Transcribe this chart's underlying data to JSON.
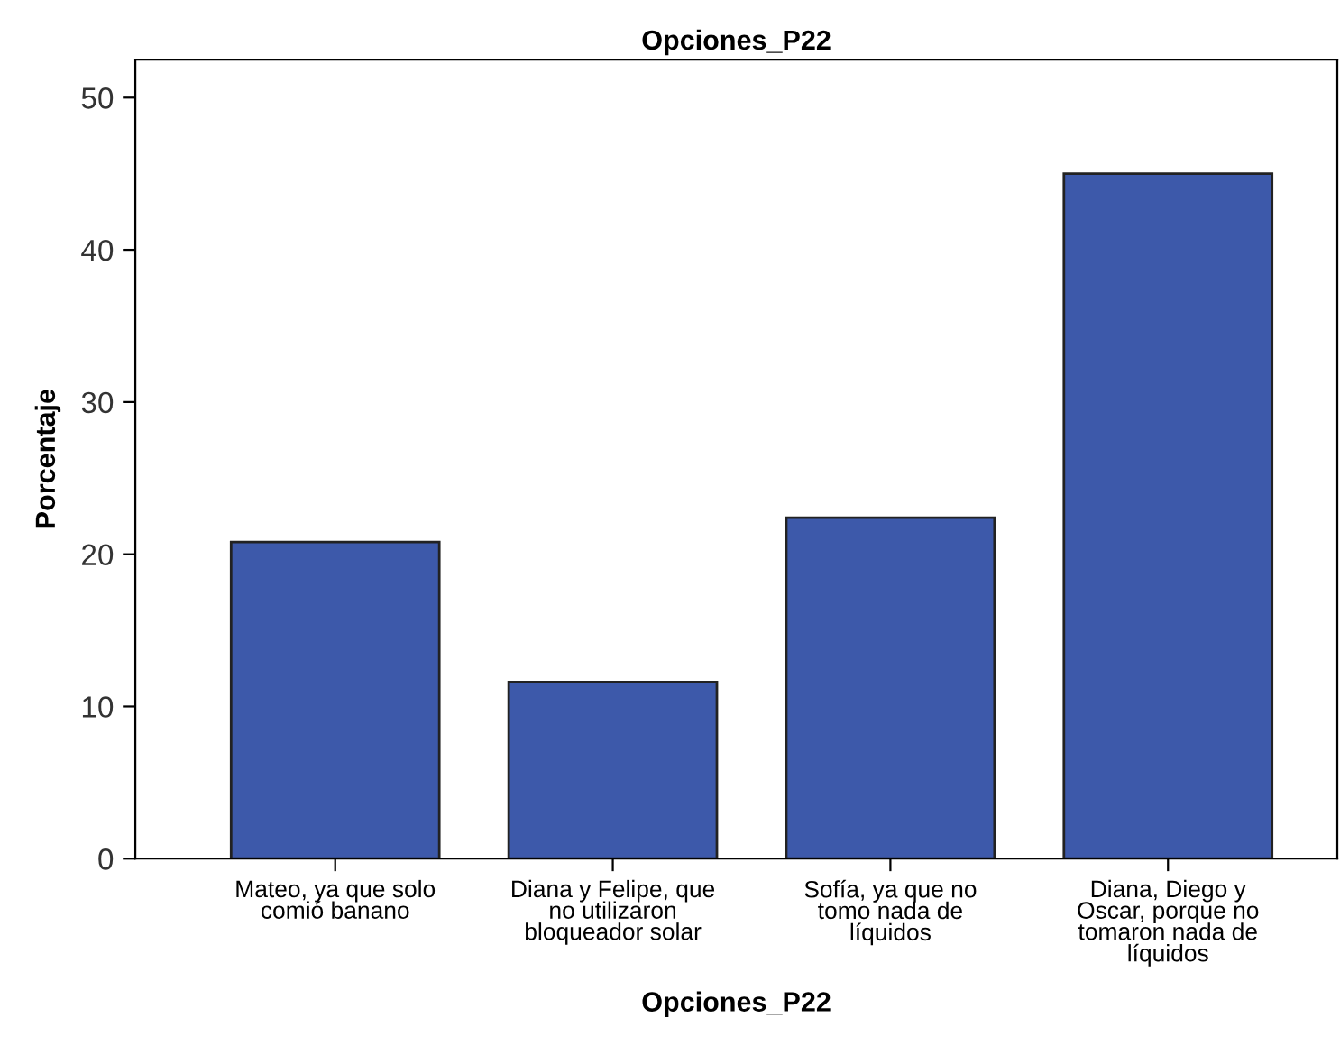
{
  "chart_data": {
    "type": "bar",
    "title": "Opciones_P22",
    "xlabel": "Opciones_P22",
    "ylabel": "Porcentaje",
    "categories": [
      "Mateo, ya que solo\ncomió banano",
      "Diana y Felipe, que\nno utilizaron\nbloqueador solar",
      "Sofía, ya que no\ntomo nada de\nlíquidos",
      "Diana, Diego y\nOscar, porque no\ntomaron nada de\nlíquidos"
    ],
    "values": [
      20.8,
      11.6,
      22.4,
      45.0
    ],
    "color": "#3d59aa",
    "ylim": [
      0,
      52.5
    ],
    "yticks": [
      0,
      10,
      20,
      30,
      40,
      50
    ],
    "grid": false
  }
}
